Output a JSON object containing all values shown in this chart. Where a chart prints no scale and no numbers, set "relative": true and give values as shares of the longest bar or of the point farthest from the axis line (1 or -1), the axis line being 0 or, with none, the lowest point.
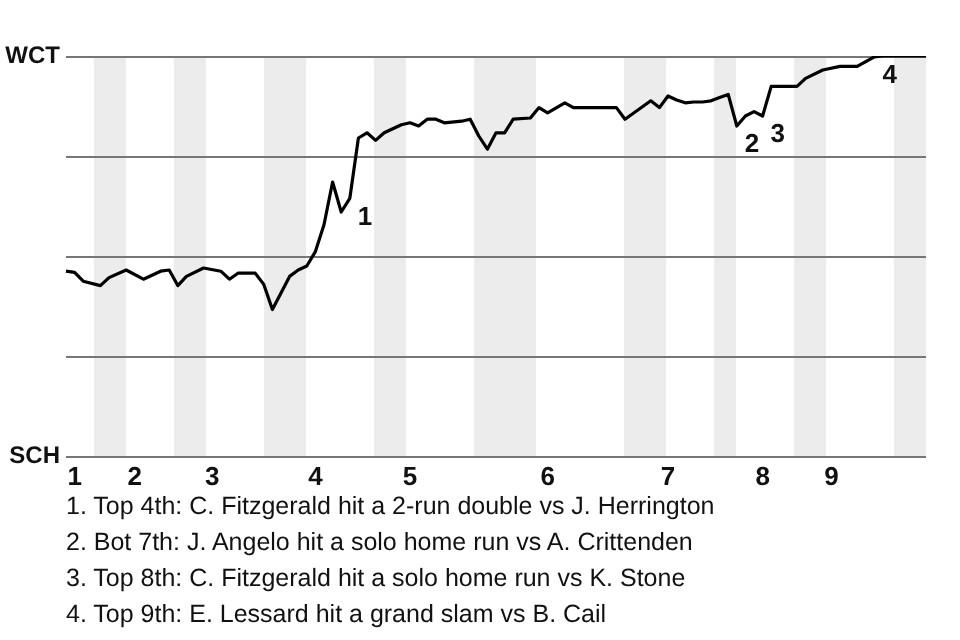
{
  "chart_data": {
    "type": "line",
    "relative": true,
    "categories": [
      null,
      "1",
      null,
      null,
      null,
      null,
      null,
      null,
      "2",
      null,
      null,
      null,
      null,
      null,
      null,
      null,
      null,
      "3",
      null,
      null,
      null,
      null,
      null,
      null,
      null,
      null,
      null,
      null,
      null,
      "4",
      null,
      null,
      null,
      null,
      null,
      null,
      null,
      null,
      null,
      null,
      "5",
      null,
      null,
      null,
      null,
      null,
      null,
      null,
      null,
      null,
      null,
      null,
      null,
      null,
      null,
      null,
      "6",
      null,
      null,
      null,
      null,
      null,
      null,
      null,
      null,
      null,
      null,
      null,
      null,
      null,
      "7",
      null,
      null,
      null,
      null,
      null,
      null,
      null,
      null,
      null,
      null,
      "8",
      null,
      null,
      null,
      null,
      null,
      null,
      null,
      "9",
      null,
      null,
      null,
      null,
      null,
      null,
      null,
      null,
      null,
      null,
      null
    ],
    "series": [
      {
        "color": "#000000",
        "values": [
          0.462,
          0.459,
          0.437,
          null,
          0.426,
          0.446,
          null,
          0.465,
          null,
          0.442,
          null,
          0.462,
          0.465,
          0.426,
          0.449,
          null,
          0.47,
          null,
          0.462,
          0.442,
          0.457,
          null,
          0.457,
          0.429,
          0.366,
          null,
          0.449,
          0.465,
          0.475,
          0.511,
          0.578,
          0.685,
          0.61,
          0.644,
          0.795,
          0.808,
          0.789,
          0.808,
          null,
          0.828,
          0.833,
          0.825,
          0.842,
          0.842,
          0.833,
          null,
          0.837,
          0.842,
          0.8,
          0.767,
          0.808,
          0.808,
          0.842,
          null,
          0.845,
          0.871,
          0.858,
          null,
          0.883,
          0.871,
          0.871,
          0.871,
          0.871,
          0.871,
          0.871,
          0.842,
          null,
          null,
          0.888,
          0.871,
          0.9,
          0.89,
          0.883,
          0.885,
          0.885,
          0.888,
          0.896,
          0.904,
          0.825,
          0.85,
          0.861,
          0.85,
          0.924,
          null,
          null,
          0.924,
          0.944,
          null,
          0.965,
          null,
          0.974,
          0.974,
          0.974,
          null,
          0.998,
          1,
          1,
          1,
          1,
          1,
          1
        ]
      }
    ],
    "legend": false,
    "marker": "none",
    "line_style": "solid",
    "ref_lines": [
      {
        "axis": "y",
        "value": 1,
        "label": "WCT",
        "color": "#777777"
      },
      {
        "axis": "y",
        "value": 0.75,
        "color": "#777777"
      },
      {
        "axis": "y",
        "value": 0.5,
        "color": "#777777"
      },
      {
        "axis": "y",
        "value": 0.25,
        "color": "#777777"
      },
      {
        "axis": "y",
        "value": 0,
        "label": "SCH",
        "color": "#777777"
      }
    ],
    "annotations": [
      "1",
      "2",
      "3",
      "4",
      "1. Top 4th: C. Fitzgerald hit a 2-run double vs J. Herrington",
      "2. Bot 7th: J. Angelo hit a solo home run vs A. Crittenden",
      "3. Top 8th: C. Fitzgerald hit a solo home run vs K. Stone",
      "4. Top 9th: E. Lessard hit a grand slam vs B. Cail"
    ]
  }
}
